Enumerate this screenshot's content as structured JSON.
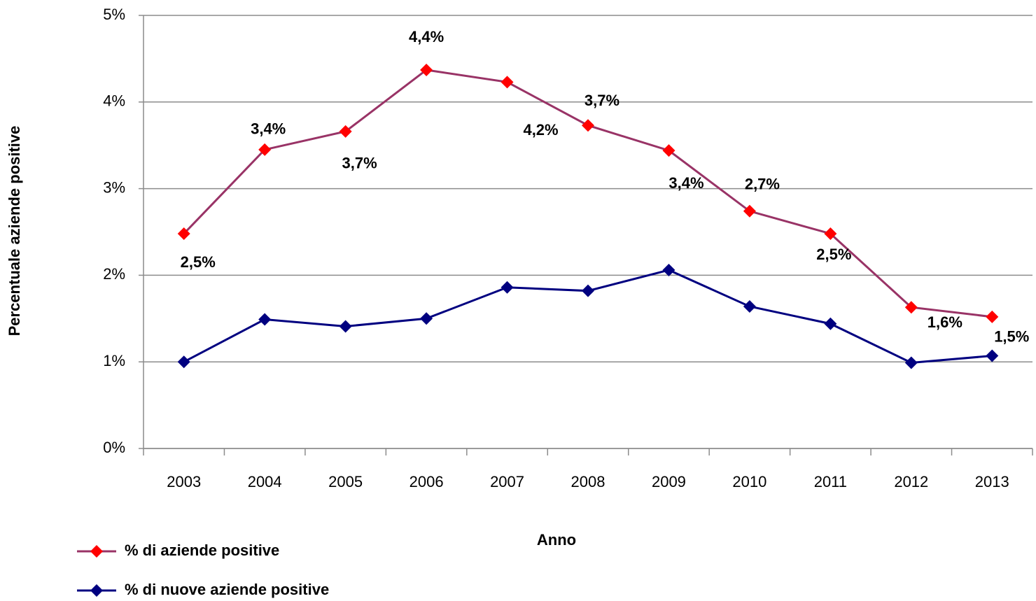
{
  "chart_data": {
    "type": "line",
    "x_label": "Anno",
    "y_label": "Percentuale aziende positive",
    "categories": [
      "2003",
      "2004",
      "2005",
      "2006",
      "2007",
      "2008",
      "2009",
      "2010",
      "2011",
      "2012",
      "2013"
    ],
    "series": [
      {
        "name": "% di aziende positive",
        "color": "#993366",
        "marker_color": "#ff0000",
        "values": [
          2.48,
          3.45,
          3.66,
          4.37,
          4.23,
          3.73,
          3.44,
          2.74,
          2.48,
          1.63,
          1.52
        ],
        "value_labels": [
          "2,5%",
          "3,4%",
          "3,7%",
          "4,4%",
          "4,2%",
          "3,7%",
          "3,4%",
          "2,7%",
          "2,5%",
          "1,6%",
          "1,5%"
        ]
      },
      {
        "name": "% di nuove aziende positive",
        "color": "#000080",
        "marker_color": "#000080",
        "values": [
          1.0,
          1.49,
          1.41,
          1.5,
          1.86,
          1.82,
          2.06,
          1.64,
          1.44,
          0.99,
          1.07
        ]
      }
    ],
    "ylim": [
      0,
      5
    ],
    "yticks": [
      {
        "value": 0,
        "label": "0%"
      },
      {
        "value": 1,
        "label": "1%"
      },
      {
        "value": 2,
        "label": "2%"
      },
      {
        "value": 3,
        "label": "3%"
      },
      {
        "value": 4,
        "label": "4%"
      },
      {
        "value": 5,
        "label": "5%"
      }
    ],
    "grid": true,
    "legend": "bottom-left"
  }
}
